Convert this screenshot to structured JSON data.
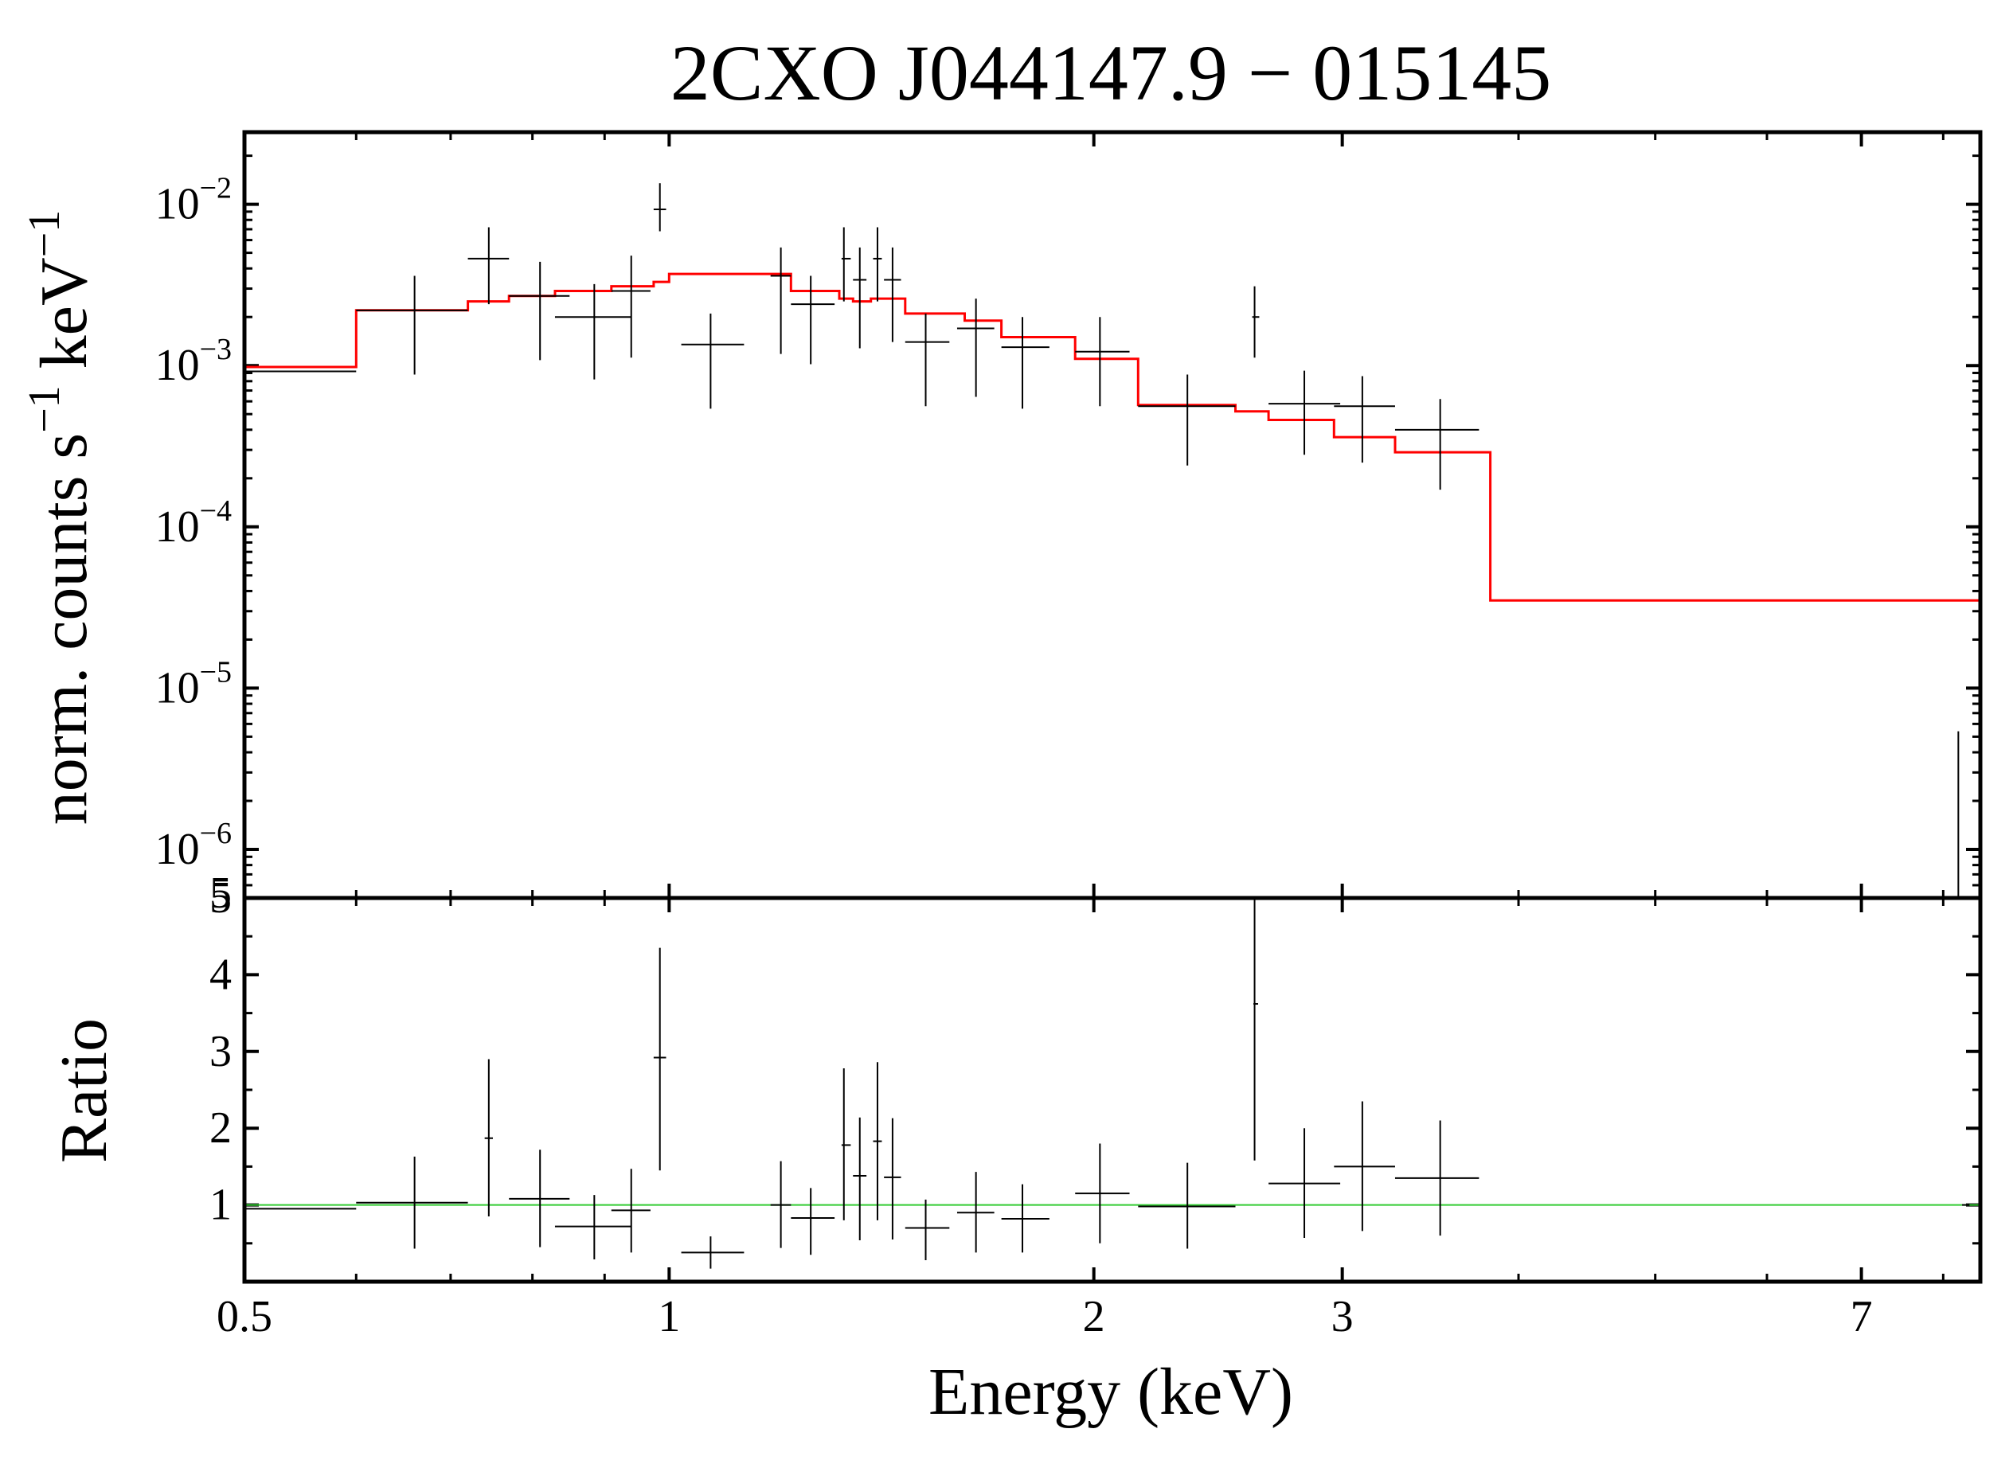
{
  "chart_data": [
    {
      "panel": "spectrum",
      "type": "scatter",
      "title": "2CXO J044147.9 − 015145",
      "ylabel": "norm. counts s",
      "ylabel_sup1": "−1",
      "ylabel_mid": " keV",
      "ylabel_sup2": "−1",
      "x_scale": "log",
      "y_scale": "log",
      "xlim": [
        0.5,
        8.5
      ],
      "ylim": [
        5e-07,
        0.028
      ],
      "yticks": [
        {
          "base": "10",
          "exp": "−2",
          "value": 0.01
        },
        {
          "base": "10",
          "exp": "−3",
          "value": 0.001
        },
        {
          "base": "10",
          "exp": "−4",
          "value": 0.0001
        },
        {
          "base": "10",
          "exp": "−5",
          "value": 1e-05
        },
        {
          "base": "10",
          "exp": "−6",
          "value": 1e-06
        }
      ],
      "y_extra_tick": {
        "label": "5",
        "value": 5e-07
      },
      "data_color": "#000000",
      "model_color": "#ff0000",
      "data": [
        {
          "x": 0.55,
          "xlo": 0.5,
          "xhi": 0.6,
          "y": 0.00092,
          "ylo": 0.00092,
          "yhi": 0.00092
        },
        {
          "x": 0.66,
          "xlo": 0.6,
          "xhi": 0.72,
          "y": 0.0022,
          "ylo": 0.00088,
          "yhi": 0.0036
        },
        {
          "x": 0.745,
          "xlo": 0.72,
          "xhi": 0.77,
          "y": 0.0046,
          "ylo": 0.0024,
          "yhi": 0.0072
        },
        {
          "x": 0.81,
          "xlo": 0.77,
          "xhi": 0.85,
          "y": 0.0027,
          "ylo": 0.00108,
          "yhi": 0.0044
        },
        {
          "x": 0.885,
          "xlo": 0.83,
          "xhi": 0.94,
          "y": 0.002,
          "ylo": 0.00082,
          "yhi": 0.0032
        },
        {
          "x": 0.94,
          "xlo": 0.91,
          "xhi": 0.97,
          "y": 0.0029,
          "ylo": 0.00112,
          "yhi": 0.0048
        },
        {
          "x": 0.985,
          "xlo": 0.975,
          "xhi": 0.995,
          "y": 0.0093,
          "ylo": 0.0068,
          "yhi": 0.0135
        },
        {
          "x": 1.07,
          "xlo": 1.02,
          "xhi": 1.13,
          "y": 0.00135,
          "ylo": 0.00054,
          "yhi": 0.0021
        },
        {
          "x": 1.2,
          "xlo": 1.18,
          "xhi": 1.22,
          "y": 0.0036,
          "ylo": 0.00118,
          "yhi": 0.0054
        },
        {
          "x": 1.26,
          "xlo": 1.22,
          "xhi": 1.31,
          "y": 0.0024,
          "ylo": 0.00102,
          "yhi": 0.0036
        },
        {
          "x": 1.33,
          "xlo": 1.325,
          "xhi": 1.345,
          "y": 0.0046,
          "ylo": 0.0025,
          "yhi": 0.0072
        },
        {
          "x": 1.365,
          "xlo": 1.35,
          "xhi": 1.38,
          "y": 0.0034,
          "ylo": 0.00128,
          "yhi": 0.0054
        },
        {
          "x": 1.405,
          "xlo": 1.395,
          "xhi": 1.415,
          "y": 0.0046,
          "ylo": 0.0025,
          "yhi": 0.0072
        },
        {
          "x": 1.44,
          "xlo": 1.42,
          "xhi": 1.46,
          "y": 0.0034,
          "ylo": 0.0014,
          "yhi": 0.0054
        },
        {
          "x": 1.52,
          "xlo": 1.47,
          "xhi": 1.58,
          "y": 0.0014,
          "ylo": 0.00056,
          "yhi": 0.0021
        },
        {
          "x": 1.65,
          "xlo": 1.6,
          "xhi": 1.7,
          "y": 0.0017,
          "ylo": 0.00064,
          "yhi": 0.0026
        },
        {
          "x": 1.78,
          "xlo": 1.72,
          "xhi": 1.86,
          "y": 0.0013,
          "ylo": 0.00054,
          "yhi": 0.002
        },
        {
          "x": 2.02,
          "xlo": 1.94,
          "xhi": 2.12,
          "y": 0.00122,
          "ylo": 0.00056,
          "yhi": 0.002
        },
        {
          "x": 2.33,
          "xlo": 2.15,
          "xhi": 2.52,
          "y": 0.00056,
          "ylo": 0.00024,
          "yhi": 0.00088
        },
        {
          "x": 2.6,
          "xlo": 2.59,
          "xhi": 2.62,
          "y": 0.002,
          "ylo": 0.00112,
          "yhi": 0.0031
        },
        {
          "x": 2.82,
          "xlo": 2.66,
          "xhi": 2.99,
          "y": 0.00058,
          "ylo": 0.00028,
          "yhi": 0.00093
        },
        {
          "x": 3.1,
          "xlo": 2.96,
          "xhi": 3.27,
          "y": 0.00056,
          "ylo": 0.00025,
          "yhi": 0.00086
        },
        {
          "x": 3.52,
          "xlo": 3.27,
          "xhi": 3.75,
          "y": 0.0004,
          "ylo": 0.00017,
          "yhi": 0.00062
        },
        {
          "x": 8.2,
          "xlo": 8.2,
          "xhi": 8.2,
          "y": 5e-07,
          "ylo": 5e-07,
          "yhi": 5.4e-06
        }
      ],
      "model_steps": [
        {
          "x0": 0.5,
          "x1": 0.6,
          "y": 0.00098
        },
        {
          "x0": 0.6,
          "x1": 0.72,
          "y": 0.0022
        },
        {
          "x0": 0.72,
          "x1": 0.77,
          "y": 0.0025
        },
        {
          "x0": 0.77,
          "x1": 0.83,
          "y": 0.0027
        },
        {
          "x0": 0.83,
          "x1": 0.91,
          "y": 0.0029
        },
        {
          "x0": 0.91,
          "x1": 0.975,
          "y": 0.0031
        },
        {
          "x0": 0.975,
          "x1": 1.0,
          "y": 0.0033
        },
        {
          "x0": 1.0,
          "x1": 1.22,
          "y": 0.0037
        },
        {
          "x0": 1.22,
          "x1": 1.32,
          "y": 0.0029
        },
        {
          "x0": 1.32,
          "x1": 1.35,
          "y": 0.0026
        },
        {
          "x0": 1.35,
          "x1": 1.39,
          "y": 0.0025
        },
        {
          "x0": 1.39,
          "x1": 1.47,
          "y": 0.0026
        },
        {
          "x0": 1.47,
          "x1": 1.62,
          "y": 0.0021
        },
        {
          "x0": 1.62,
          "x1": 1.72,
          "y": 0.0019
        },
        {
          "x0": 1.72,
          "x1": 1.94,
          "y": 0.0015
        },
        {
          "x0": 1.94,
          "x1": 2.15,
          "y": 0.0011
        },
        {
          "x0": 2.15,
          "x1": 2.52,
          "y": 0.00057
        },
        {
          "x0": 2.52,
          "x1": 2.66,
          "y": 0.00052
        },
        {
          "x0": 2.66,
          "x1": 2.96,
          "y": 0.00046
        },
        {
          "x0": 2.96,
          "x1": 3.27,
          "y": 0.00036
        },
        {
          "x0": 3.27,
          "x1": 3.82,
          "y": 0.00029
        },
        {
          "x0": 3.82,
          "x1": 8.5,
          "y": 3.5e-05
        }
      ]
    },
    {
      "panel": "ratio",
      "type": "scatter",
      "ylabel": "Ratio",
      "xlabel": "Energy (keV)",
      "x_scale": "log",
      "y_scale": "linear",
      "xlim": [
        0.5,
        8.5
      ],
      "ylim": [
        0,
        5
      ],
      "yticks": [
        1,
        2,
        3,
        4,
        5
      ],
      "xticks": [
        {
          "label": "0.5",
          "value": 0.5
        },
        {
          "label": "1",
          "value": 1
        },
        {
          "label": "2",
          "value": 2
        },
        {
          "label": "3",
          "value": 3
        },
        {
          "label": "7",
          "value": 7
        }
      ],
      "reference_line": {
        "y": 1.0,
        "color": "#33cc33"
      },
      "data_color": "#000000",
      "data": [
        {
          "x": 0.55,
          "xlo": 0.5,
          "xhi": 0.6,
          "y": 0.95,
          "ylo": 0.95,
          "yhi": 0.95
        },
        {
          "x": 0.66,
          "xlo": 0.6,
          "xhi": 0.72,
          "y": 1.03,
          "ylo": 0.43,
          "yhi": 1.63
        },
        {
          "x": 0.745,
          "xlo": 0.74,
          "xhi": 0.75,
          "y": 1.87,
          "ylo": 0.85,
          "yhi": 2.9
        },
        {
          "x": 0.81,
          "xlo": 0.77,
          "xhi": 0.85,
          "y": 1.08,
          "ylo": 0.45,
          "yhi": 1.72
        },
        {
          "x": 0.885,
          "xlo": 0.83,
          "xhi": 0.94,
          "y": 0.72,
          "ylo": 0.29,
          "yhi": 1.13
        },
        {
          "x": 0.94,
          "xlo": 0.91,
          "xhi": 0.97,
          "y": 0.93,
          "ylo": 0.38,
          "yhi": 1.47
        },
        {
          "x": 0.985,
          "xlo": 0.975,
          "xhi": 0.995,
          "y": 2.92,
          "ylo": 1.45,
          "yhi": 4.35
        },
        {
          "x": 1.07,
          "xlo": 1.02,
          "xhi": 1.13,
          "y": 0.38,
          "ylo": 0.17,
          "yhi": 0.59
        },
        {
          "x": 1.2,
          "xlo": 1.18,
          "xhi": 1.22,
          "y": 1.0,
          "ylo": 0.44,
          "yhi": 1.57
        },
        {
          "x": 1.26,
          "xlo": 1.22,
          "xhi": 1.31,
          "y": 0.83,
          "ylo": 0.35,
          "yhi": 1.22
        },
        {
          "x": 1.33,
          "xlo": 1.325,
          "xhi": 1.345,
          "y": 1.78,
          "ylo": 0.8,
          "yhi": 2.78
        },
        {
          "x": 1.365,
          "xlo": 1.35,
          "xhi": 1.38,
          "y": 1.38,
          "ylo": 0.54,
          "yhi": 2.14
        },
        {
          "x": 1.405,
          "xlo": 1.395,
          "xhi": 1.415,
          "y": 1.83,
          "ylo": 0.8,
          "yhi": 2.86
        },
        {
          "x": 1.44,
          "xlo": 1.42,
          "xhi": 1.46,
          "y": 1.36,
          "ylo": 0.55,
          "yhi": 2.13
        },
        {
          "x": 1.52,
          "xlo": 1.47,
          "xhi": 1.58,
          "y": 0.7,
          "ylo": 0.28,
          "yhi": 1.07
        },
        {
          "x": 1.65,
          "xlo": 1.6,
          "xhi": 1.7,
          "y": 0.9,
          "ylo": 0.38,
          "yhi": 1.43
        },
        {
          "x": 1.78,
          "xlo": 1.72,
          "xhi": 1.86,
          "y": 0.82,
          "ylo": 0.38,
          "yhi": 1.27
        },
        {
          "x": 2.02,
          "xlo": 1.94,
          "xhi": 2.12,
          "y": 1.15,
          "ylo": 0.5,
          "yhi": 1.8
        },
        {
          "x": 2.33,
          "xlo": 2.15,
          "xhi": 2.52,
          "y": 0.98,
          "ylo": 0.43,
          "yhi": 1.55
        },
        {
          "x": 2.6,
          "xlo": 2.595,
          "xhi": 2.615,
          "y": 3.62,
          "ylo": 1.58,
          "yhi": 5.0
        },
        {
          "x": 2.82,
          "xlo": 2.66,
          "xhi": 2.99,
          "y": 1.28,
          "ylo": 0.57,
          "yhi": 2.0
        },
        {
          "x": 3.1,
          "xlo": 2.96,
          "xhi": 3.27,
          "y": 1.5,
          "ylo": 0.66,
          "yhi": 2.35
        },
        {
          "x": 3.52,
          "xlo": 3.27,
          "xhi": 3.75,
          "y": 1.35,
          "ylo": 0.6,
          "yhi": 2.1
        },
        {
          "x": 8.3,
          "xlo": 8.25,
          "xhi": 8.35,
          "y": 1.0,
          "ylo": 1.0,
          "yhi": 1.0
        }
      ]
    }
  ]
}
